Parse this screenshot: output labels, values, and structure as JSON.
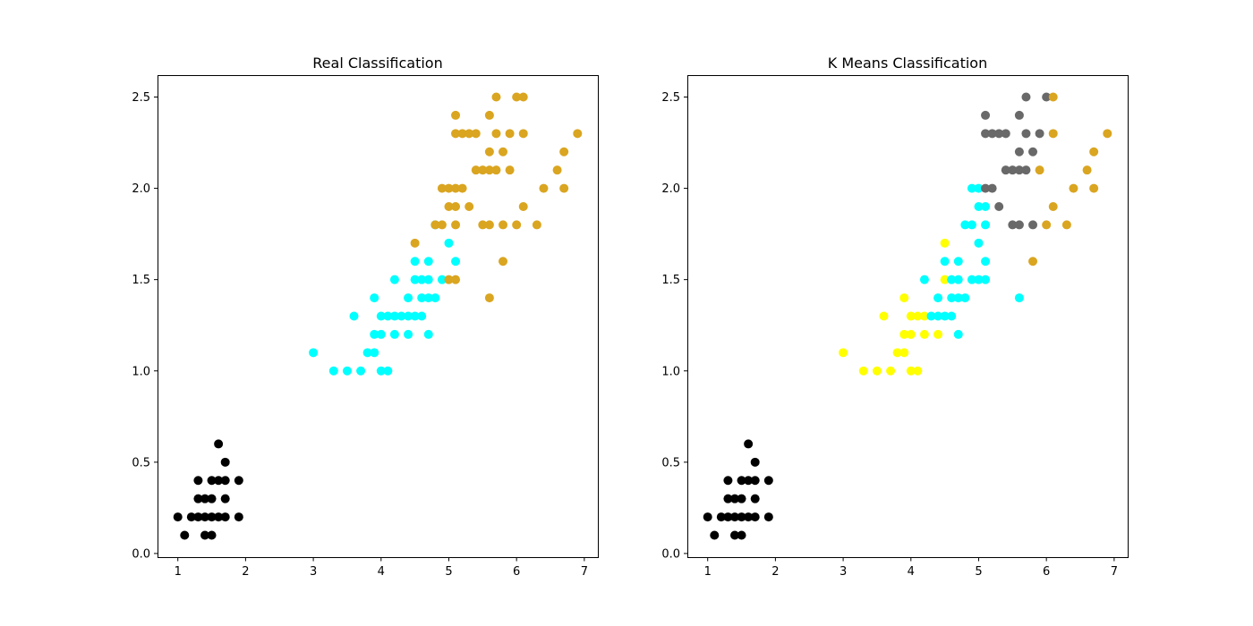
{
  "chart_data": [
    {
      "type": "scatter",
      "title": "Real Classification",
      "xlim": [
        0.7,
        7.2
      ],
      "ylim": [
        -0.02,
        2.62
      ],
      "xticks": [
        "1",
        "2",
        "3",
        "4",
        "5",
        "6",
        "7"
      ],
      "yticks": [
        "0.0",
        "0.5",
        "1.0",
        "1.5",
        "2.0",
        "2.5"
      ],
      "series": [
        {
          "color": "#000000",
          "points": [
            [
              1.0,
              0.2
            ],
            [
              1.1,
              0.1
            ],
            [
              1.2,
              0.2
            ],
            [
              1.3,
              0.2
            ],
            [
              1.3,
              0.3
            ],
            [
              1.3,
              0.4
            ],
            [
              1.4,
              0.1
            ],
            [
              1.4,
              0.2
            ],
            [
              1.4,
              0.3
            ],
            [
              1.5,
              0.1
            ],
            [
              1.5,
              0.2
            ],
            [
              1.5,
              0.3
            ],
            [
              1.5,
              0.4
            ],
            [
              1.6,
              0.2
            ],
            [
              1.6,
              0.4
            ],
            [
              1.6,
              0.6
            ],
            [
              1.7,
              0.2
            ],
            [
              1.7,
              0.3
            ],
            [
              1.7,
              0.4
            ],
            [
              1.7,
              0.5
            ],
            [
              1.9,
              0.2
            ],
            [
              1.9,
              0.4
            ]
          ]
        },
        {
          "color": "#00ffff",
          "points": [
            [
              3.0,
              1.1
            ],
            [
              3.3,
              1.0
            ],
            [
              3.5,
              1.0
            ],
            [
              3.6,
              1.3
            ],
            [
              3.7,
              1.0
            ],
            [
              3.8,
              1.1
            ],
            [
              3.9,
              1.1
            ],
            [
              3.9,
              1.2
            ],
            [
              3.9,
              1.4
            ],
            [
              4.0,
              1.0
            ],
            [
              4.0,
              1.2
            ],
            [
              4.0,
              1.3
            ],
            [
              4.1,
              1.0
            ],
            [
              4.1,
              1.3
            ],
            [
              4.2,
              1.2
            ],
            [
              4.2,
              1.3
            ],
            [
              4.2,
              1.5
            ],
            [
              4.3,
              1.3
            ],
            [
              4.4,
              1.2
            ],
            [
              4.4,
              1.3
            ],
            [
              4.4,
              1.4
            ],
            [
              4.5,
              1.3
            ],
            [
              4.5,
              1.5
            ],
            [
              4.5,
              1.6
            ],
            [
              4.6,
              1.3
            ],
            [
              4.6,
              1.4
            ],
            [
              4.6,
              1.5
            ],
            [
              4.7,
              1.2
            ],
            [
              4.7,
              1.4
            ],
            [
              4.7,
              1.5
            ],
            [
              4.7,
              1.6
            ],
            [
              4.8,
              1.4
            ],
            [
              4.8,
              1.8
            ],
            [
              4.9,
              1.5
            ],
            [
              5.0,
              1.7
            ],
            [
              5.1,
              1.6
            ]
          ]
        },
        {
          "color": "#daa520",
          "points": [
            [
              4.5,
              1.7
            ],
            [
              4.8,
              1.8
            ],
            [
              4.9,
              1.8
            ],
            [
              4.9,
              2.0
            ],
            [
              5.0,
              1.5
            ],
            [
              5.0,
              1.9
            ],
            [
              5.0,
              2.0
            ],
            [
              5.1,
              1.5
            ],
            [
              5.1,
              1.8
            ],
            [
              5.1,
              1.9
            ],
            [
              5.1,
              2.0
            ],
            [
              5.1,
              2.3
            ],
            [
              5.1,
              2.4
            ],
            [
              5.2,
              2.0
            ],
            [
              5.2,
              2.3
            ],
            [
              5.3,
              1.9
            ],
            [
              5.3,
              2.3
            ],
            [
              5.4,
              2.1
            ],
            [
              5.4,
              2.3
            ],
            [
              5.5,
              1.8
            ],
            [
              5.5,
              2.1
            ],
            [
              5.6,
              1.4
            ],
            [
              5.6,
              1.8
            ],
            [
              5.6,
              2.1
            ],
            [
              5.6,
              2.2
            ],
            [
              5.6,
              2.4
            ],
            [
              5.7,
              2.1
            ],
            [
              5.7,
              2.3
            ],
            [
              5.7,
              2.5
            ],
            [
              5.8,
              1.6
            ],
            [
              5.8,
              1.8
            ],
            [
              5.8,
              2.2
            ],
            [
              5.9,
              2.1
            ],
            [
              5.9,
              2.3
            ],
            [
              6.0,
              1.8
            ],
            [
              6.0,
              2.5
            ],
            [
              6.1,
              1.9
            ],
            [
              6.1,
              2.3
            ],
            [
              6.1,
              2.5
            ],
            [
              6.3,
              1.8
            ],
            [
              6.4,
              2.0
            ],
            [
              6.6,
              2.1
            ],
            [
              6.7,
              2.0
            ],
            [
              6.7,
              2.2
            ],
            [
              6.9,
              2.3
            ]
          ]
        }
      ]
    },
    {
      "type": "scatter",
      "title": "K Means Classification",
      "xlim": [
        0.7,
        7.2
      ],
      "ylim": [
        -0.02,
        2.62
      ],
      "xticks": [
        "1",
        "2",
        "3",
        "4",
        "5",
        "6",
        "7"
      ],
      "yticks": [
        "0.0",
        "0.5",
        "1.0",
        "1.5",
        "2.0",
        "2.5"
      ],
      "series": [
        {
          "color": "#000000",
          "points": [
            [
              1.0,
              0.2
            ],
            [
              1.1,
              0.1
            ],
            [
              1.2,
              0.2
            ],
            [
              1.3,
              0.2
            ],
            [
              1.3,
              0.3
            ],
            [
              1.3,
              0.4
            ],
            [
              1.4,
              0.1
            ],
            [
              1.4,
              0.2
            ],
            [
              1.4,
              0.3
            ],
            [
              1.5,
              0.1
            ],
            [
              1.5,
              0.2
            ],
            [
              1.5,
              0.3
            ],
            [
              1.5,
              0.4
            ],
            [
              1.6,
              0.2
            ],
            [
              1.6,
              0.4
            ],
            [
              1.6,
              0.6
            ],
            [
              1.7,
              0.2
            ],
            [
              1.7,
              0.3
            ],
            [
              1.7,
              0.4
            ],
            [
              1.7,
              0.5
            ],
            [
              1.9,
              0.2
            ],
            [
              1.9,
              0.4
            ]
          ]
        },
        {
          "color": "#ffff00",
          "points": [
            [
              3.0,
              1.1
            ],
            [
              3.3,
              1.0
            ],
            [
              3.5,
              1.0
            ],
            [
              3.6,
              1.3
            ],
            [
              3.7,
              1.0
            ],
            [
              3.8,
              1.1
            ],
            [
              3.9,
              1.1
            ],
            [
              3.9,
              1.2
            ],
            [
              3.9,
              1.4
            ],
            [
              4.0,
              1.0
            ],
            [
              4.0,
              1.2
            ],
            [
              4.0,
              1.3
            ],
            [
              4.1,
              1.0
            ],
            [
              4.1,
              1.3
            ],
            [
              4.2,
              1.2
            ],
            [
              4.2,
              1.3
            ],
            [
              4.4,
              1.2
            ],
            [
              4.5,
              1.5
            ],
            [
              4.5,
              1.7
            ]
          ]
        },
        {
          "color": "#00ffff",
          "points": [
            [
              4.2,
              1.5
            ],
            [
              4.3,
              1.3
            ],
            [
              4.4,
              1.3
            ],
            [
              4.4,
              1.4
            ],
            [
              4.5,
              1.3
            ],
            [
              4.5,
              1.6
            ],
            [
              4.6,
              1.3
            ],
            [
              4.6,
              1.4
            ],
            [
              4.6,
              1.5
            ],
            [
              4.7,
              1.2
            ],
            [
              4.7,
              1.4
            ],
            [
              4.7,
              1.5
            ],
            [
              4.7,
              1.6
            ],
            [
              4.8,
              1.4
            ],
            [
              4.8,
              1.8
            ],
            [
              4.9,
              1.5
            ],
            [
              4.9,
              1.8
            ],
            [
              4.9,
              2.0
            ],
            [
              5.0,
              1.5
            ],
            [
              5.0,
              1.7
            ],
            [
              5.0,
              1.9
            ],
            [
              5.0,
              2.0
            ],
            [
              5.1,
              1.5
            ],
            [
              5.1,
              1.6
            ],
            [
              5.1,
              1.8
            ],
            [
              5.1,
              1.9
            ],
            [
              5.6,
              1.4
            ]
          ]
        },
        {
          "color": "#696969",
          "points": [
            [
              5.1,
              2.0
            ],
            [
              5.1,
              2.3
            ],
            [
              5.1,
              2.4
            ],
            [
              5.2,
              2.0
            ],
            [
              5.2,
              2.3
            ],
            [
              5.3,
              1.9
            ],
            [
              5.3,
              2.3
            ],
            [
              5.4,
              2.1
            ],
            [
              5.4,
              2.3
            ],
            [
              5.5,
              1.8
            ],
            [
              5.5,
              2.1
            ],
            [
              5.6,
              1.8
            ],
            [
              5.6,
              2.1
            ],
            [
              5.6,
              2.2
            ],
            [
              5.6,
              2.4
            ],
            [
              5.7,
              2.1
            ],
            [
              5.7,
              2.3
            ],
            [
              5.7,
              2.5
            ],
            [
              5.8,
              1.8
            ],
            [
              5.8,
              2.2
            ],
            [
              5.9,
              2.3
            ],
            [
              6.0,
              2.5
            ]
          ]
        },
        {
          "color": "#daa520",
          "points": [
            [
              5.8,
              1.6
            ],
            [
              5.9,
              2.1
            ],
            [
              6.0,
              1.8
            ],
            [
              6.1,
              1.9
            ],
            [
              6.1,
              2.3
            ],
            [
              6.1,
              2.5
            ],
            [
              6.3,
              1.8
            ],
            [
              6.4,
              2.0
            ],
            [
              6.6,
              2.1
            ],
            [
              6.7,
              2.0
            ],
            [
              6.7,
              2.2
            ],
            [
              6.9,
              2.3
            ]
          ]
        }
      ]
    }
  ]
}
